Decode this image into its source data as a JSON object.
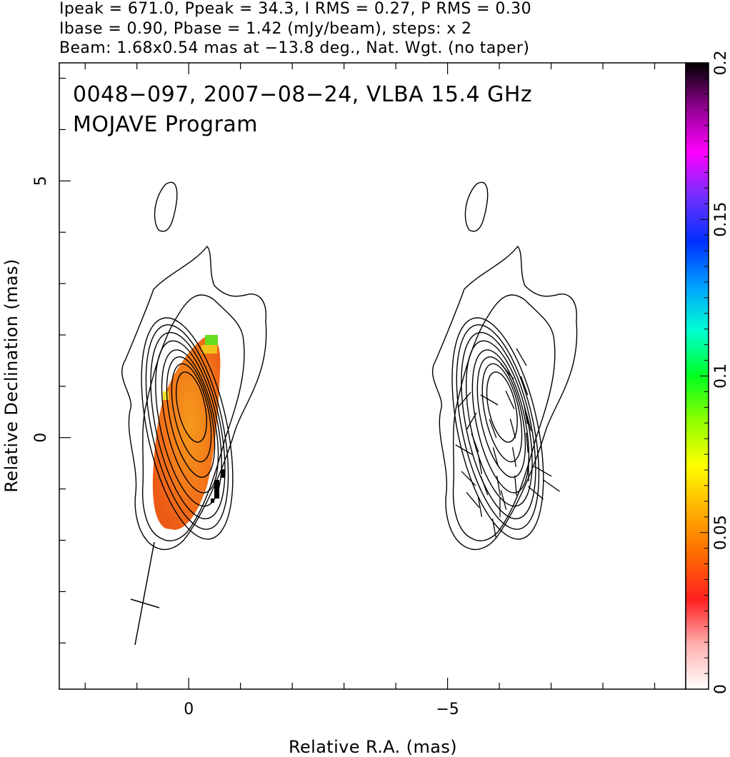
{
  "header": {
    "line1": "Ipeak = 671.0, Ppeak = 34.3, I RMS = 0.27, P RMS = 0.30",
    "line2": "Ibase = 0.90, Pbase = 1.42 (mJy/beam), steps: x 2",
    "line3": "Beam: 1.68x0.54 mas at −13.8 deg., Nat. Wgt. (no taper)"
  },
  "chart_data": {
    "type": "heatmap",
    "title": "0048−097, 2007−08−24, VLBA 15.4 GHz",
    "subtitle": "MOJAVE Program",
    "xlabel": "Relative R.A. (mas)",
    "ylabel": "Relative Declination (mas)",
    "xlim": [
      2.5,
      -9.6
    ],
    "ylim": [
      -4.9,
      7.3
    ],
    "x_ticks": [
      0,
      -5
    ],
    "x_tick_labels": [
      "0",
      "−5"
    ],
    "y_ticks": [
      0,
      5
    ],
    "y_tick_labels": [
      "0",
      "5"
    ],
    "colorbar": {
      "range": [
        0,
        0.2
      ],
      "ticks": [
        0,
        0.05,
        0.1,
        0.15,
        0.2
      ],
      "tick_labels": [
        "0",
        "0.05",
        "0.1",
        "0.15",
        "0.2"
      ],
      "colors": [
        "#ffffff",
        "#ffb0b0",
        "#ff2020",
        "#ff6a00",
        "#ffb000",
        "#ffff00",
        "#90ff00",
        "#00ff20",
        "#00ffd0",
        "#00a0ff",
        "#0030ff",
        "#7030ff",
        "#ff00ff",
        "#900090",
        "#000000"
      ]
    },
    "beam": {
      "major_mas": 1.68,
      "minor_mas": 0.54,
      "pa_deg": -13.8
    },
    "contours_mjy_per_beam": {
      "base": 0.9,
      "factor": 2,
      "levels": [
        0.9,
        1.8,
        3.6,
        7.2,
        14.4,
        28.8,
        57.6,
        115.2,
        230.4,
        460.8
      ]
    },
    "panels": [
      {
        "name": "total-intensity",
        "ra_offset": 0,
        "color_fill": "fractional-polarization",
        "fill_value_range": [
          0.04,
          0.1
        ]
      },
      {
        "name": "polarization",
        "ra_offset": -6,
        "evpa_ticks": true
      }
    ]
  }
}
